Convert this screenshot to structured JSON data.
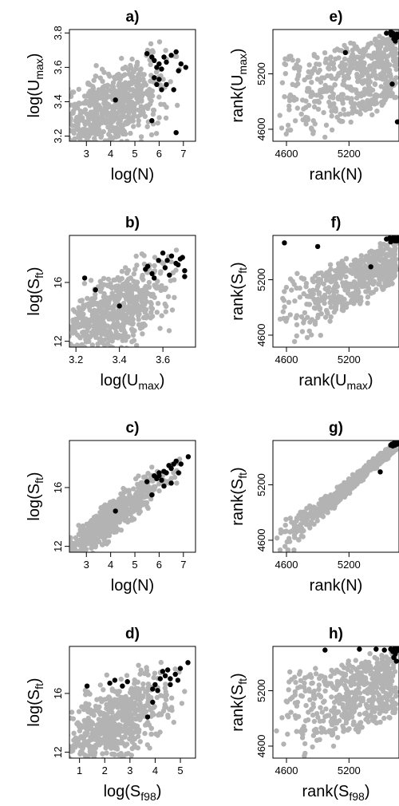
{
  "colors": {
    "background": "#b3b3b3",
    "highlight": "#000000"
  },
  "chart_data": [
    {
      "type": "scatter",
      "id": "a",
      "title": "a)",
      "xlabel": {
        "main": "log(N)",
        "sub": ""
      },
      "ylabel": {
        "main": "log(U",
        "sub": "max",
        "close": ")"
      },
      "xlim": [
        2.3,
        7.5
      ],
      "ylim": [
        3.17,
        3.82
      ],
      "xticks": [
        3,
        4,
        5,
        6,
        7
      ],
      "yticks": [
        3.2,
        3.4,
        3.6,
        3.8
      ],
      "seed": 11,
      "n_background": 650,
      "cloud": {
        "rho": 0.55,
        "spread": 1.0
      },
      "highlight_points": [
        [
          4.2,
          3.41
        ],
        [
          5.5,
          3.68
        ],
        [
          5.7,
          3.66
        ],
        [
          5.8,
          3.64
        ],
        [
          5.9,
          3.6
        ],
        [
          6.0,
          3.62
        ],
        [
          6.1,
          3.59
        ],
        [
          6.2,
          3.66
        ],
        [
          6.3,
          3.63
        ],
        [
          6.5,
          3.67
        ],
        [
          6.7,
          3.69
        ],
        [
          6.9,
          3.62
        ],
        [
          7.1,
          3.6
        ],
        [
          6.0,
          3.53
        ],
        [
          6.1,
          3.47
        ],
        [
          5.9,
          3.5
        ],
        [
          6.3,
          3.5
        ],
        [
          6.6,
          3.47
        ],
        [
          5.7,
          3.29
        ],
        [
          6.7,
          3.22
        ],
        [
          5.8,
          3.54
        ],
        [
          6.8,
          3.58
        ]
      ]
    },
    {
      "type": "scatter",
      "id": "e",
      "title": "e)",
      "xlabel": {
        "main": "rank(N)",
        "sub": ""
      },
      "ylabel": {
        "main": "rank(U",
        "sub": "max",
        "close": ")"
      },
      "xlim": [
        4470,
        5680
      ],
      "ylim": [
        4470,
        5680
      ],
      "xticks": [
        4600,
        5200
      ],
      "yticks": [
        4600,
        5200
      ],
      "seed": 22,
      "n_background": 520,
      "cloud": {
        "rho": 0.3,
        "spread": 1.0
      },
      "highlight_points": [
        [
          5165,
          5430
        ],
        [
          5560,
          5640
        ],
        [
          5600,
          5655
        ],
        [
          5620,
          5640
        ],
        [
          5640,
          5610
        ],
        [
          5655,
          5590
        ],
        [
          5660,
          5630
        ],
        [
          5605,
          5620
        ],
        [
          5630,
          5580
        ],
        [
          5645,
          5555
        ],
        [
          5615,
          5090
        ],
        [
          5665,
          4680
        ]
      ]
    },
    {
      "type": "scatter",
      "id": "b",
      "title": "b)",
      "xlabel": {
        "main": "log(U",
        "sub": "max",
        "close": ")"
      },
      "ylabel": {
        "main": "log(S",
        "sub": "ft",
        "close": ")"
      },
      "xlim": [
        3.17,
        3.75
      ],
      "ylim": [
        11.6,
        19.2
      ],
      "xticks": [
        3.2,
        3.4,
        3.6
      ],
      "yticks": [
        12,
        16
      ],
      "seed": 33,
      "n_background": 650,
      "cloud": {
        "rho": 0.62,
        "spread": 1.0
      },
      "highlight_points": [
        [
          3.24,
          16.3
        ],
        [
          3.29,
          15.5
        ],
        [
          3.4,
          14.4
        ],
        [
          3.52,
          16.9
        ],
        [
          3.53,
          17.1
        ],
        [
          3.55,
          16.6
        ],
        [
          3.56,
          16.3
        ],
        [
          3.58,
          17.5
        ],
        [
          3.6,
          18.0
        ],
        [
          3.61,
          17.0
        ],
        [
          3.63,
          16.5
        ],
        [
          3.64,
          17.8
        ],
        [
          3.66,
          17.3
        ],
        [
          3.68,
          17.6
        ],
        [
          3.69,
          17.7
        ],
        [
          3.7,
          16.8
        ],
        [
          3.7,
          16.4
        ],
        [
          3.62,
          17.5
        ],
        [
          3.67,
          17.2
        ]
      ]
    },
    {
      "type": "scatter",
      "id": "f",
      "title": "f)",
      "xlabel": {
        "main": "rank(U",
        "sub": "max",
        "close": ")"
      },
      "ylabel": {
        "main": "rank(S",
        "sub": "ft",
        "close": ")"
      },
      "xlim": [
        4470,
        5680
      ],
      "ylim": [
        4470,
        5680
      ],
      "xticks": [
        4600,
        5200
      ],
      "yticks": [
        4600,
        5200
      ],
      "seed": 44,
      "n_background": 520,
      "cloud": {
        "rho": 0.5,
        "spread": 1.0
      },
      "highlight_points": [
        [
          4580,
          5600
        ],
        [
          4900,
          5560
        ],
        [
          5410,
          5340
        ],
        [
          5560,
          5640
        ],
        [
          5590,
          5650
        ],
        [
          5610,
          5630
        ],
        [
          5630,
          5660
        ],
        [
          5640,
          5620
        ],
        [
          5655,
          5640
        ],
        [
          5665,
          5650
        ],
        [
          5600,
          5610
        ],
        [
          5660,
          5620
        ]
      ]
    },
    {
      "type": "scatter",
      "id": "c",
      "title": "c)",
      "xlabel": {
        "main": "log(N)",
        "sub": ""
      },
      "ylabel": {
        "main": "log(S",
        "sub": "ft",
        "close": ")"
      },
      "xlim": [
        2.3,
        7.5
      ],
      "ylim": [
        11.6,
        19.2
      ],
      "xticks": [
        2,
        3,
        4,
        5,
        6,
        7
      ],
      "yticks": [
        12,
        16
      ],
      "seed": 55,
      "n_background": 650,
      "cloud": {
        "rho": 0.93,
        "spread": 1.0
      },
      "highlight_points": [
        [
          4.2,
          14.4
        ],
        [
          5.5,
          16.4
        ],
        [
          5.7,
          15.5
        ],
        [
          5.8,
          16.8
        ],
        [
          5.9,
          16.6
        ],
        [
          6.0,
          17.0
        ],
        [
          6.1,
          16.5
        ],
        [
          6.2,
          17.1
        ],
        [
          6.3,
          17.0
        ],
        [
          6.4,
          17.5
        ],
        [
          6.5,
          17.3
        ],
        [
          6.6,
          17.6
        ],
        [
          6.7,
          17.8
        ],
        [
          6.9,
          17.6
        ],
        [
          7.2,
          18.1
        ],
        [
          6.2,
          16.1
        ],
        [
          6.5,
          16.3
        ],
        [
          6.0,
          16.8
        ],
        [
          6.8,
          17.0
        ]
      ]
    },
    {
      "type": "scatter",
      "id": "g",
      "title": "g)",
      "xlabel": {
        "main": "rank(N)",
        "sub": ""
      },
      "ylabel": {
        "main": "rank(S",
        "sub": "ft",
        "close": ")"
      },
      "xlim": [
        4470,
        5680
      ],
      "ylim": [
        4470,
        5680
      ],
      "xticks": [
        4600,
        5200
      ],
      "yticks": [
        4600,
        5200
      ],
      "seed": 66,
      "n_background": 580,
      "cloud": {
        "rho": 0.93,
        "spread": 1.0
      },
      "highlight_points": [
        [
          5500,
          5340
        ],
        [
          5610,
          5640
        ],
        [
          5630,
          5650
        ],
        [
          5650,
          5660
        ],
        [
          5660,
          5640
        ],
        [
          5640,
          5630
        ],
        [
          5620,
          5620
        ],
        [
          5660,
          5665
        ],
        [
          5600,
          5630
        ],
        [
          5670,
          5655
        ]
      ]
    },
    {
      "type": "scatter",
      "id": "d",
      "title": "d)",
      "xlabel": {
        "main": "log(S",
        "sub": "f98",
        "close": ")"
      },
      "ylabel": {
        "main": "log(S",
        "sub": "ft",
        "close": ")"
      },
      "xlim": [
        0.6,
        5.6
      ],
      "ylim": [
        11.6,
        19.2
      ],
      "xticks": [
        1,
        2,
        3,
        4,
        5
      ],
      "yticks": [
        12,
        16
      ],
      "seed": 77,
      "n_background": 650,
      "cloud": {
        "rho": 0.55,
        "spread": 1.0
      },
      "highlight_points": [
        [
          1.3,
          16.5
        ],
        [
          2.2,
          16.7
        ],
        [
          2.4,
          16.9
        ],
        [
          2.7,
          16.5
        ],
        [
          2.9,
          16.8
        ],
        [
          3.7,
          14.4
        ],
        [
          3.9,
          15.4
        ],
        [
          3.9,
          16.3
        ],
        [
          4.0,
          16.6
        ],
        [
          4.1,
          16.2
        ],
        [
          4.2,
          17.0
        ],
        [
          4.3,
          17.5
        ],
        [
          4.4,
          17.2
        ],
        [
          4.5,
          17.6
        ],
        [
          4.6,
          17.0
        ],
        [
          4.6,
          16.6
        ],
        [
          4.8,
          17.3
        ],
        [
          5.0,
          17.7
        ],
        [
          5.3,
          18.1
        ],
        [
          4.9,
          16.9
        ]
      ]
    },
    {
      "type": "scatter",
      "id": "h",
      "title": "h)",
      "xlabel": {
        "main": "rank(S",
        "sub": "f98",
        "close": ")"
      },
      "ylabel": {
        "main": "rank(S",
        "sub": "ft",
        "close": ")"
      },
      "xlim": [
        4470,
        5680
      ],
      "ylim": [
        4470,
        5680
      ],
      "xticks": [
        4600,
        5200
      ],
      "yticks": [
        4600,
        5200
      ],
      "seed": 88,
      "n_background": 520,
      "cloud": {
        "rho": 0.3,
        "spread": 1.0
      },
      "highlight_points": [
        [
          4970,
          5640
        ],
        [
          5300,
          5650
        ],
        [
          5460,
          5650
        ],
        [
          5540,
          5640
        ],
        [
          5600,
          5650
        ],
        [
          5630,
          5640
        ],
        [
          5650,
          5620
        ],
        [
          5660,
          5660
        ],
        [
          5640,
          5660
        ],
        [
          5620,
          5625
        ],
        [
          5630,
          5560
        ],
        [
          5655,
          5520
        ],
        [
          5670,
          5640
        ],
        [
          5645,
          5600
        ]
      ]
    }
  ]
}
